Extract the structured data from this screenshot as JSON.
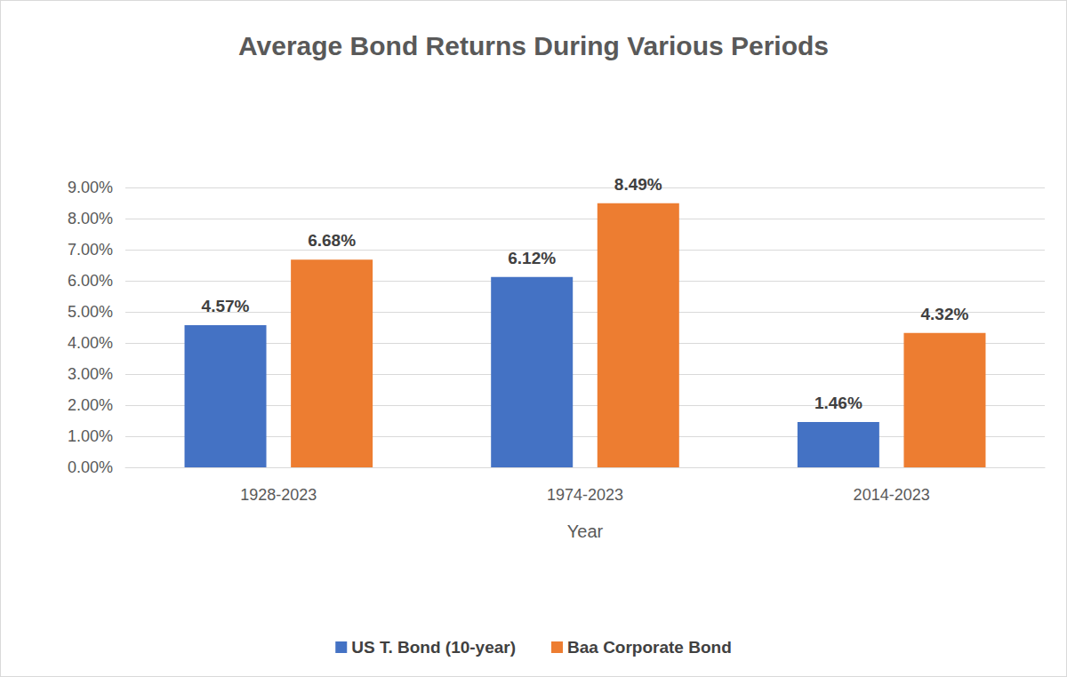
{
  "chart_data": {
    "type": "bar",
    "title": "Average Bond Returns During Various Periods",
    "x_label": "Year",
    "categories": [
      "1928-2023",
      "1974-2023",
      "2014-2023"
    ],
    "series": [
      {
        "name": "US T. Bond (10-year)",
        "color": "#4472c4",
        "values": [
          4.57,
          6.12,
          1.46
        ],
        "value_labels": [
          "4.57%",
          "6.12%",
          "1.46%"
        ]
      },
      {
        "name": "Baa Corporate Bond",
        "color": "#ed7d31",
        "values": [
          6.68,
          8.49,
          4.32
        ],
        "value_labels": [
          "6.68%",
          "8.49%",
          "4.32%"
        ]
      }
    ],
    "ylim": [
      0,
      9
    ],
    "yticks": [
      {
        "value": 0,
        "label": "0.00%"
      },
      {
        "value": 1,
        "label": "1.00%"
      },
      {
        "value": 2,
        "label": "2.00%"
      },
      {
        "value": 3,
        "label": "3.00%"
      },
      {
        "value": 4,
        "label": "4.00%"
      },
      {
        "value": 5,
        "label": "5.00%"
      },
      {
        "value": 6,
        "label": "6.00%"
      },
      {
        "value": 7,
        "label": "7.00%"
      },
      {
        "value": 8,
        "label": "8.00%"
      },
      {
        "value": 9,
        "label": "9.00%"
      }
    ],
    "grid": true,
    "legend": "bottom",
    "data_labels": true
  }
}
